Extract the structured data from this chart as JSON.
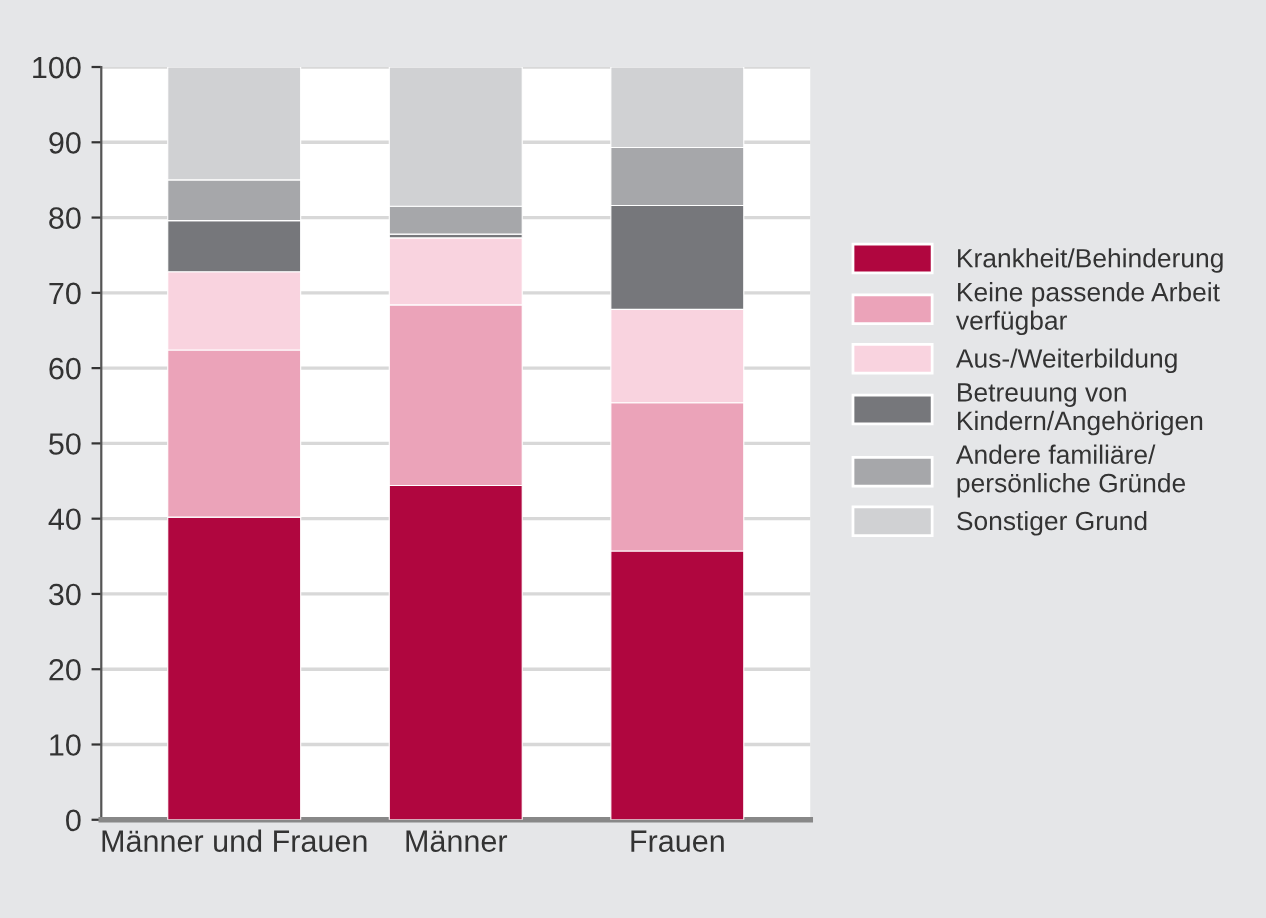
{
  "chart_data": {
    "type": "bar",
    "stacked": true,
    "categories": [
      "Männer und Frauen",
      "Männer",
      "Frauen"
    ],
    "series": [
      {
        "name": "Krankheit/Behinderung",
        "color": "#b0063f",
        "values": [
          40.2,
          44.4,
          35.7
        ]
      },
      {
        "name": "Keine passende Arbeit\nverfügbar",
        "color": "#eba3b9",
        "values": [
          22.2,
          24.0,
          19.7
        ]
      },
      {
        "name": "Aus-/Weiterbildung",
        "color": "#f9d3df",
        "values": [
          10.4,
          8.9,
          12.4
        ]
      },
      {
        "name": "Betreuung von\nKindern/Angehörigen",
        "color": "#76777b",
        "values": [
          6.8,
          0.5,
          13.8
        ]
      },
      {
        "name": "Andere familiäre/\npersönliche Gründe",
        "color": "#a6a7aa",
        "values": [
          5.4,
          3.7,
          7.7
        ]
      },
      {
        "name": "Sonstiger Grund",
        "color": "#d0d1d3",
        "values": [
          15.0,
          18.5,
          10.7
        ]
      }
    ],
    "ylim": [
      0,
      100
    ],
    "yticks": [
      0,
      10,
      20,
      30,
      40,
      50,
      60,
      70,
      80,
      90,
      100
    ],
    "grid": "y",
    "legend": "right"
  }
}
